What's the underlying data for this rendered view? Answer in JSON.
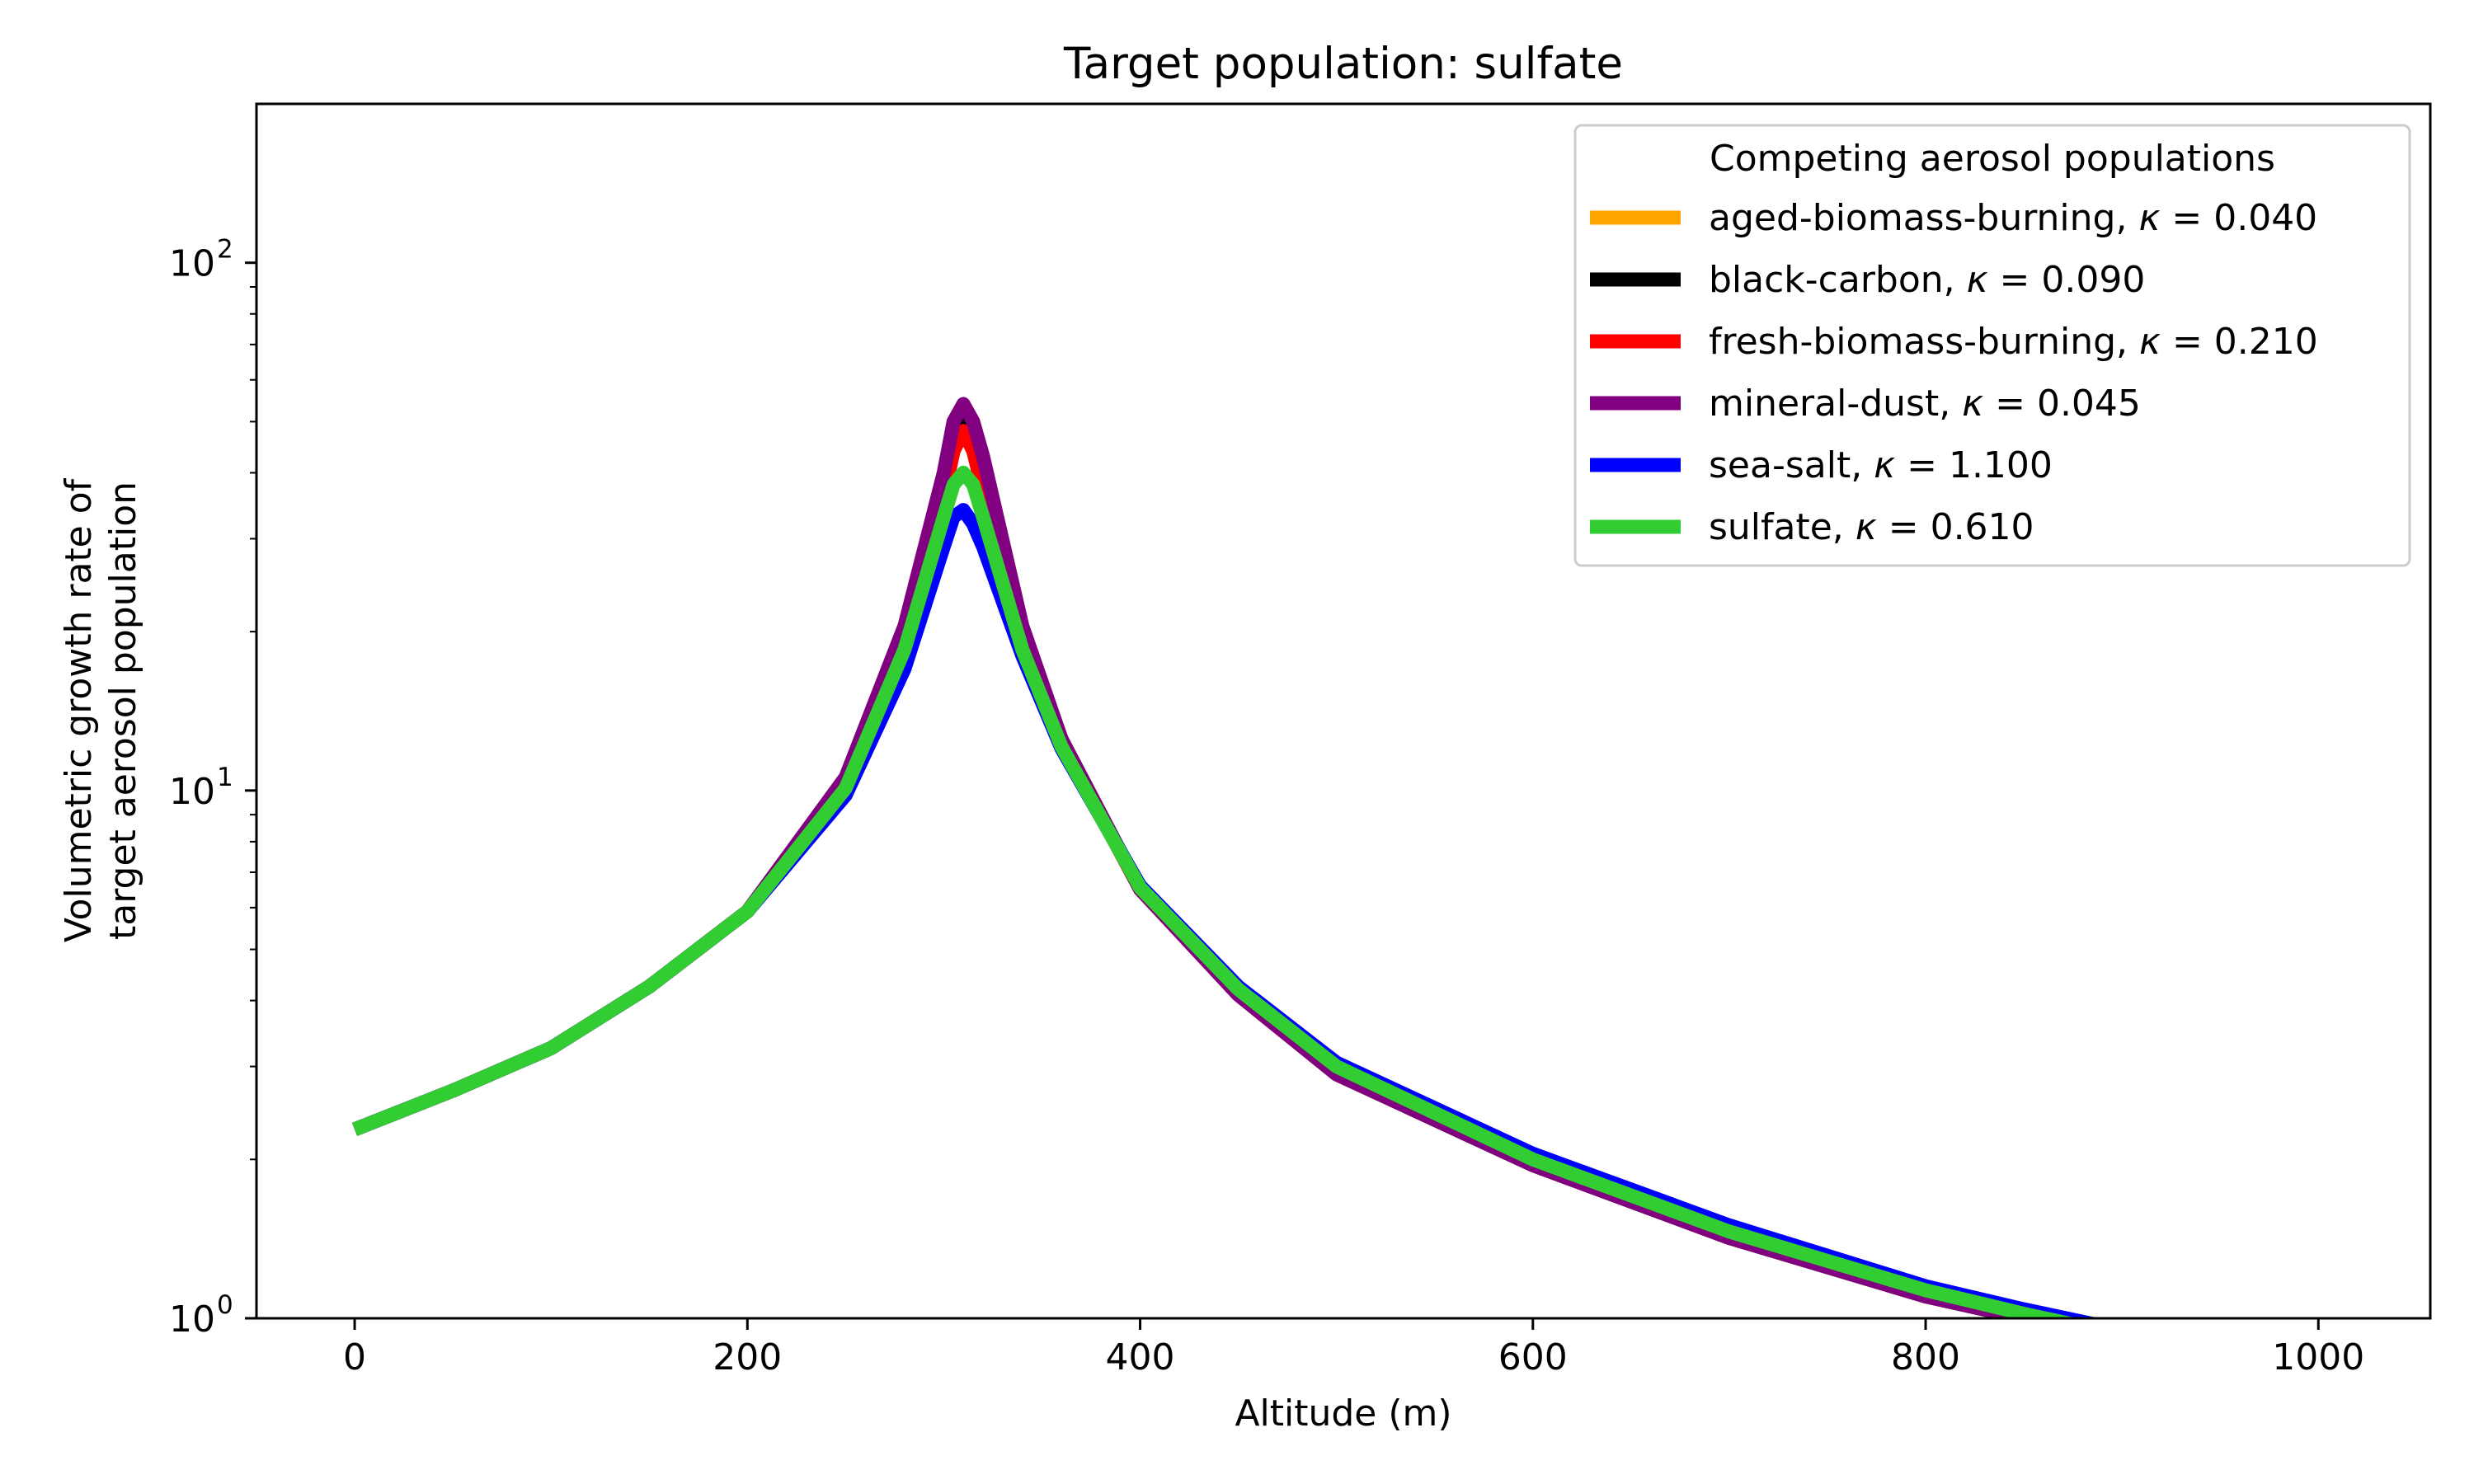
{
  "chart_data": {
    "type": "line",
    "title": "Target population: sulfate",
    "xlabel": "Altitude (m)",
    "ylabel_lines": [
      "Volumetric growth rate of",
      "target aerosol population"
    ],
    "xlim": [
      -50,
      1057
    ],
    "ylim": [
      1,
      200
    ],
    "yscale": "log",
    "x_ticks": [
      0,
      200,
      400,
      600,
      800,
      1000
    ],
    "x_tick_labels": [
      "0",
      "200",
      "400",
      "600",
      "800",
      "1000"
    ],
    "y_ticks": [
      1,
      10,
      100
    ],
    "y_tick_base_labels": [
      "10",
      "10",
      "10"
    ],
    "y_tick_exp_labels": [
      "0",
      "1",
      "2"
    ],
    "grid": false,
    "legend": {
      "title": "Competing aerosol populations",
      "placement": "top-right"
    },
    "series": [
      {
        "name": "aged-biomass-burning, ",
        "kappa_text": "0.040",
        "color": "#ffa500",
        "x": [
          0,
          50,
          100,
          150,
          200,
          250,
          280,
          300,
          305,
          310,
          315,
          320,
          340,
          360,
          400,
          450,
          500,
          600,
          700,
          800,
          850,
          900,
          1000
        ],
        "y": [
          2.28,
          2.7,
          3.25,
          4.25,
          5.9,
          10.5,
          20,
          38,
          47,
          52,
          47,
          40,
          20,
          12.5,
          6.5,
          4.1,
          2.9,
          1.95,
          1.42,
          1.1,
          1.0,
          0.9,
          0.75
        ]
      },
      {
        "name": "black-carbon, ",
        "kappa_text": "0.090",
        "color": "#000000",
        "x": [
          0,
          50,
          100,
          150,
          200,
          250,
          280,
          300,
          305,
          310,
          315,
          320,
          340,
          360,
          400,
          450,
          500,
          600,
          700,
          800,
          850,
          900,
          1000
        ],
        "y": [
          2.28,
          2.7,
          3.25,
          4.25,
          5.9,
          10.5,
          20,
          38,
          47,
          52,
          47,
          40,
          20,
          12.5,
          6.5,
          4.1,
          2.9,
          1.95,
          1.42,
          1.1,
          1.0,
          0.9,
          0.75
        ]
      },
      {
        "name": "fresh-biomass-burning, ",
        "kappa_text": "0.210",
        "color": "#ff0000",
        "x": [
          0,
          50,
          100,
          150,
          200,
          250,
          280,
          300,
          305,
          310,
          315,
          320,
          340,
          360,
          400,
          450,
          500,
          600,
          700,
          800,
          850,
          900,
          1000
        ],
        "y": [
          2.28,
          2.7,
          3.25,
          4.25,
          5.9,
          10.4,
          19.5,
          36,
          44,
          48,
          44,
          37,
          19.5,
          12.3,
          6.5,
          4.1,
          2.9,
          1.96,
          1.43,
          1.11,
          1.0,
          0.91,
          0.76
        ]
      },
      {
        "name": "mineral-dust, ",
        "kappa_text": "0.045",
        "color": "#800080",
        "x": [
          0,
          50,
          100,
          150,
          200,
          250,
          280,
          300,
          305,
          310,
          315,
          320,
          340,
          360,
          400,
          450,
          500,
          600,
          700,
          800,
          850,
          900,
          1000
        ],
        "y": [
          2.28,
          2.7,
          3.25,
          4.25,
          5.9,
          10.6,
          20.5,
          40,
          50,
          54,
          50,
          43,
          20.5,
          12.5,
          6.5,
          4.1,
          2.9,
          1.95,
          1.42,
          1.1,
          1.0,
          0.9,
          0.75
        ]
      },
      {
        "name": "sea-salt, ",
        "kappa_text": "1.100",
        "color": "#0000ff",
        "x": [
          0,
          50,
          100,
          150,
          200,
          250,
          280,
          300,
          305,
          310,
          315,
          320,
          340,
          360,
          400,
          450,
          500,
          600,
          700,
          800,
          850,
          900,
          1000
        ],
        "y": [
          2.28,
          2.7,
          3.25,
          4.25,
          5.9,
          9.8,
          17,
          29,
          33,
          34,
          32,
          29,
          18,
          12,
          6.6,
          4.25,
          3.05,
          2.05,
          1.5,
          1.15,
          1.04,
          0.95,
          0.8
        ]
      },
      {
        "name": "sulfate, ",
        "kappa_text": "0.610",
        "color": "#32cd32",
        "x": [
          0,
          50,
          100,
          150,
          200,
          250,
          280,
          300,
          305,
          310,
          315,
          320,
          340,
          360,
          400,
          450,
          500,
          600,
          700,
          800,
          850,
          900,
          1000
        ],
        "y": [
          2.28,
          2.7,
          3.25,
          4.25,
          5.9,
          10.1,
          18.5,
          33,
          38,
          40,
          38,
          33,
          18.5,
          12.1,
          6.55,
          4.2,
          3.0,
          2.0,
          1.46,
          1.13,
          1.02,
          0.93,
          0.78
        ]
      }
    ]
  }
}
